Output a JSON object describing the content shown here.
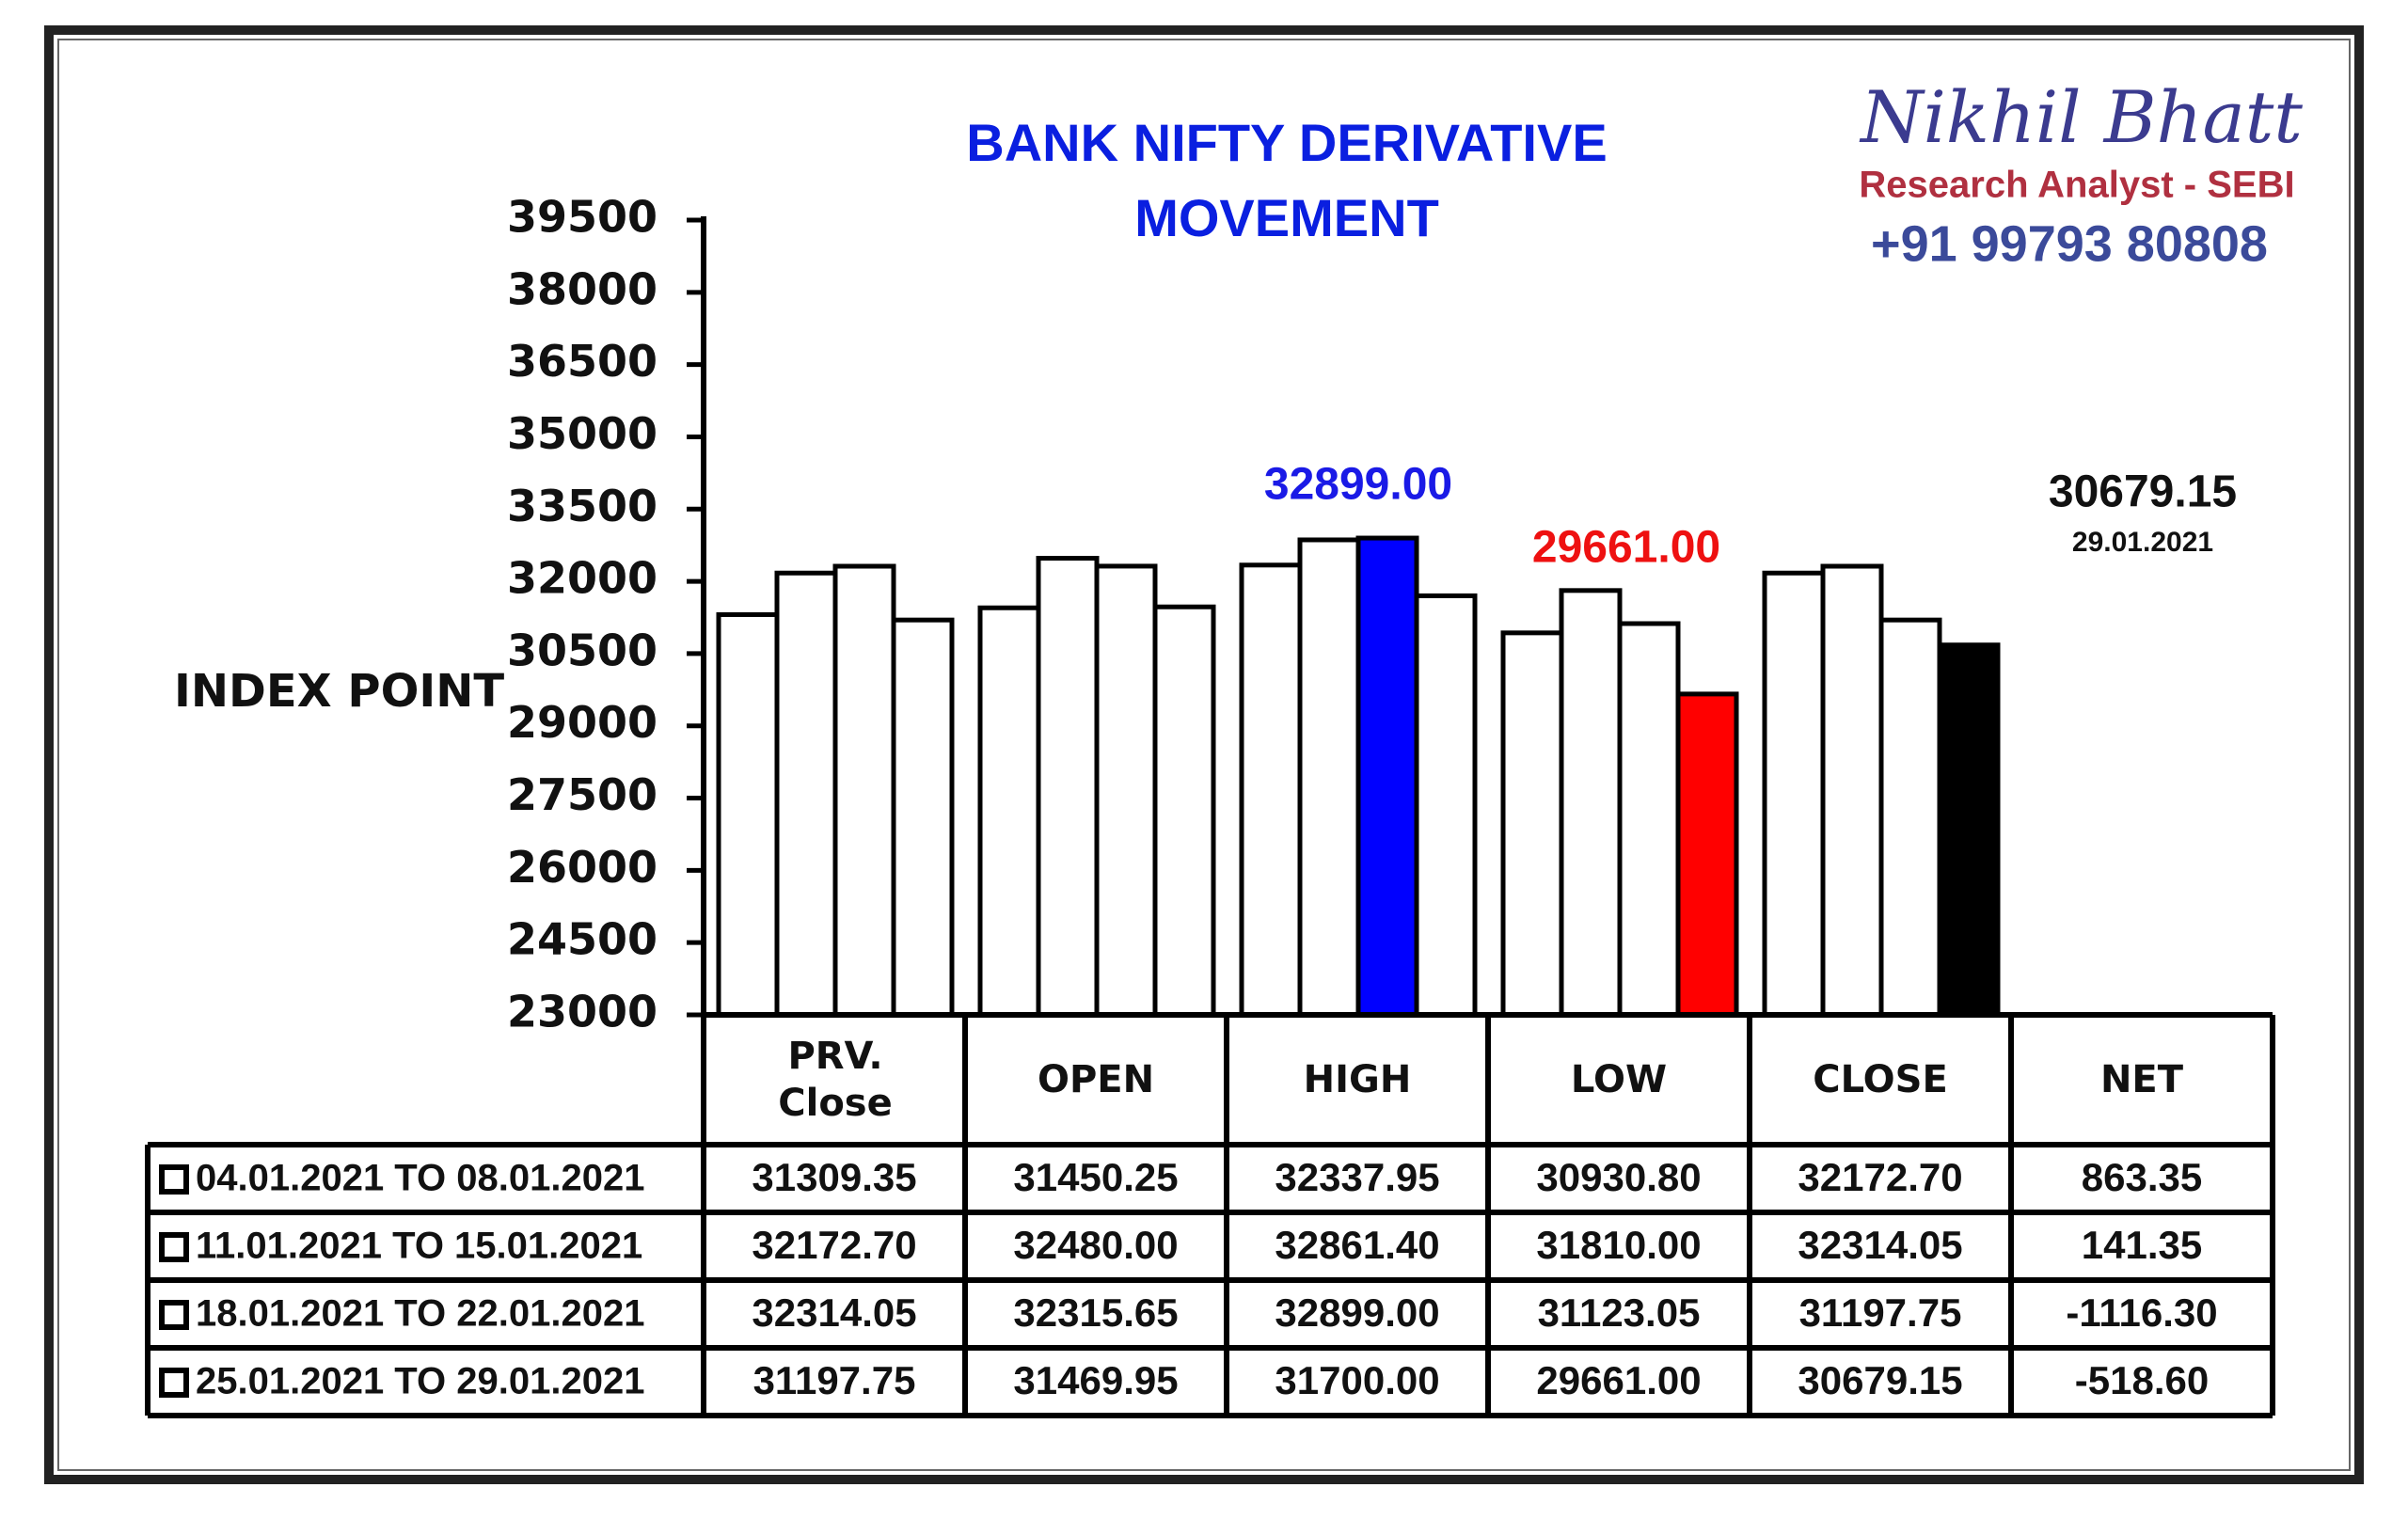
{
  "chart_data": {
    "type": "bar",
    "title": "BANK NIFTY DERIVATIVE MOVEMENT",
    "ylabel": "INDEX POINT",
    "categories": [
      "PRV. Close",
      "OPEN",
      "HIGH",
      "LOW",
      "CLOSE"
    ],
    "ylim": [
      23000,
      39500
    ],
    "yticks": [
      23000,
      24500,
      26000,
      27500,
      29000,
      30500,
      32000,
      33500,
      35000,
      36500,
      38000,
      39500
    ],
    "grid": false,
    "series": [
      {
        "name": "04.01.2021 TO 08.01.2021",
        "colors": [
          "#ffffff",
          "#ffffff",
          "#ffffff",
          "#ffffff",
          "#ffffff"
        ],
        "values": [
          31309.35,
          31450.25,
          32337.95,
          30930.8,
          32172.7
        ],
        "value_labels": [
          "31309.35",
          "31450.25",
          "32337.95",
          "30930.80",
          "32172.70"
        ]
      },
      {
        "name": "11.01.2021 TO 15.01.2021",
        "colors": [
          "#ffffff",
          "#ffffff",
          "#ffffff",
          "#ffffff",
          "#ffffff"
        ],
        "values": [
          32172.7,
          32480,
          32861.4,
          31810,
          32314.05
        ],
        "value_labels": [
          "32172.70",
          "32480.00",
          "32861.40",
          "31810.00",
          "32314.05"
        ]
      },
      {
        "name": "18.01.2021 TO 22.01.2021",
        "colors": [
          "#ffffff",
          "#ffffff",
          "#0000ff",
          "#ffffff",
          "#ffffff"
        ],
        "values": [
          32314.05,
          32315.65,
          32899,
          31123.05,
          31197.75
        ],
        "value_labels": [
          "32314.05",
          "32315.65",
          "32899.00",
          "31123.05",
          "31197.75"
        ]
      },
      {
        "name": "25.01.2021 TO 29.01.2021",
        "colors": [
          "#ffffff",
          "#ffffff",
          "#ffffff",
          "#ff0000",
          "#000000"
        ],
        "values": [
          31197.75,
          31469.95,
          31700,
          29661,
          30679.15
        ],
        "value_labels": [
          "31197.75",
          "31469.95",
          "31700.00",
          "29661.00",
          "30679.15"
        ]
      }
    ],
    "net_header": "NET",
    "net_labels": [
      "863.35",
      "141.35",
      "-1116.30",
      "-518.60"
    ],
    "annotations": [
      {
        "text": "32899.00",
        "color": "#1a1ae6"
      },
      {
        "text": "29661.00",
        "color": "#ee1111"
      },
      {
        "text": "30679.15",
        "color": "#111111"
      },
      {
        "text": "29.01.2021",
        "color": "#111111"
      }
    ],
    "branding": {
      "name": "Nikhil Bhatt",
      "role": "Research Analyst - SEBI",
      "phone": "+91 99793 80808"
    }
  }
}
